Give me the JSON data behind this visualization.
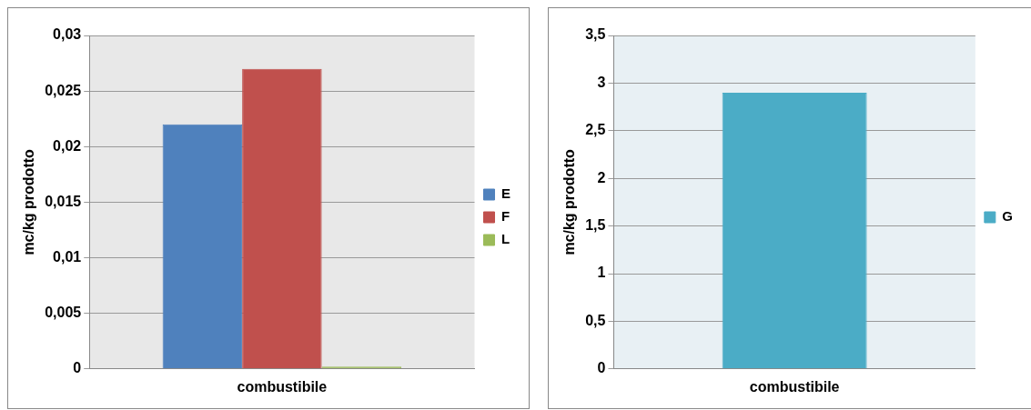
{
  "chart_data": [
    {
      "type": "bar",
      "ylabel": "mc/kg prodotto",
      "categories": [
        "combustibile"
      ],
      "series": [
        {
          "name": "E",
          "color": "#4f81bd",
          "values": [
            0.022
          ]
        },
        {
          "name": "F",
          "color": "#c0504d",
          "values": [
            0.027
          ]
        },
        {
          "name": "L",
          "color": "#9bbb59",
          "values": [
            0.0002
          ]
        }
      ],
      "ylim": [
        0,
        0.03
      ],
      "yticks": [
        {
          "value": 0,
          "label": "0"
        },
        {
          "value": 0.005,
          "label": "0,005"
        },
        {
          "value": 0.01,
          "label": "0,01"
        },
        {
          "value": 0.015,
          "label": "0,015"
        },
        {
          "value": 0.02,
          "label": "0,02"
        },
        {
          "value": 0.025,
          "label": "0,025"
        },
        {
          "value": 0.03,
          "label": "0,03"
        }
      ],
      "grid": "y",
      "legend": "right"
    },
    {
      "type": "bar",
      "ylabel": "mc/kg prodotto",
      "categories": [
        "combustibile"
      ],
      "series": [
        {
          "name": "G",
          "color": "#4bacc6",
          "values": [
            2.9
          ]
        }
      ],
      "ylim": [
        0,
        3.5
      ],
      "yticks": [
        0,
        {
          "value": 0.5,
          "label": "0,5"
        },
        1,
        {
          "value": 1.5,
          "label": "1,5"
        },
        2,
        {
          "value": 2.5,
          "label": "2,5"
        },
        3,
        {
          "value": 3.5,
          "label": "3,5"
        }
      ],
      "grid": "y",
      "legend": "right"
    }
  ]
}
